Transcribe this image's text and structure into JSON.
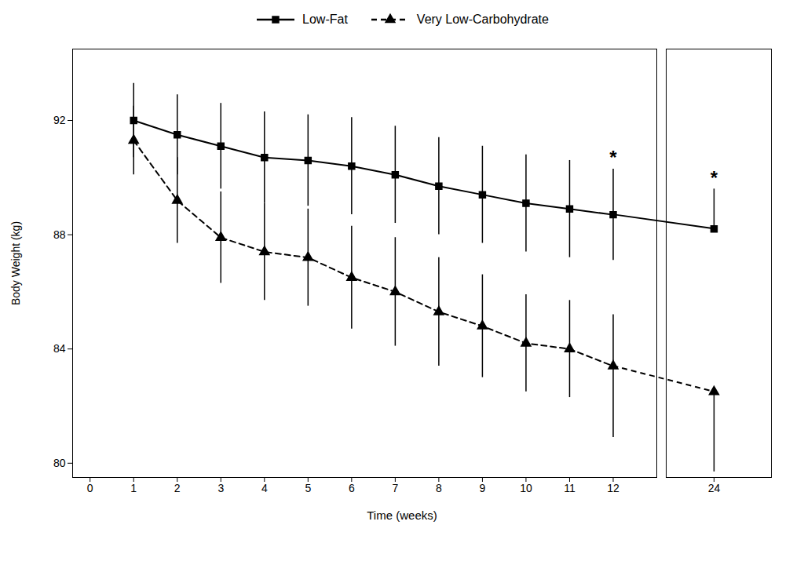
{
  "chart_data": [
    {
      "type": "line",
      "ylabel": "Body Weight (kg)",
      "xlabel": "Time (weeks)",
      "legend": "top",
      "x": [
        1,
        2,
        3,
        4,
        5,
        6,
        7,
        8,
        9,
        10,
        11,
        12
      ],
      "xlim": [
        -0.4,
        13.0
      ],
      "xticks": [
        0,
        1,
        2,
        3,
        4,
        5,
        6,
        7,
        8,
        9,
        10,
        11,
        12
      ],
      "ylim": [
        79.5,
        94.5
      ],
      "yticks": [
        80,
        84,
        88,
        92
      ],
      "series": [
        {
          "name": "Low-Fat",
          "color": "black",
          "marker": "square",
          "line_style": "solid",
          "values": [
            92.0,
            91.5,
            91.1,
            90.7,
            90.6,
            90.4,
            90.1,
            89.7,
            89.4,
            89.1,
            88.9,
            88.7
          ],
          "err_up": [
            1.3,
            1.4,
            1.5,
            1.6,
            1.6,
            1.7,
            1.7,
            1.7,
            1.7,
            1.7,
            1.7,
            1.6
          ],
          "err_dn": [
            1.3,
            1.4,
            1.5,
            1.6,
            1.6,
            1.7,
            1.7,
            1.7,
            1.7,
            1.7,
            1.7,
            1.6
          ]
        },
        {
          "name": "Very Low-Carbohydrate",
          "color": "black",
          "marker": "triangle",
          "line_style": "dashed",
          "values": [
            91.3,
            89.2,
            87.9,
            87.4,
            87.2,
            86.5,
            86.0,
            85.3,
            84.8,
            84.2,
            84.0,
            83.4
          ],
          "err_up": [
            1.2,
            1.5,
            1.6,
            1.7,
            1.7,
            1.8,
            1.9,
            1.9,
            1.8,
            1.7,
            1.7,
            1.8
          ],
          "err_dn": [
            1.2,
            1.5,
            1.6,
            1.7,
            1.7,
            1.8,
            1.9,
            1.9,
            1.8,
            1.7,
            1.7,
            2.5
          ]
        }
      ],
      "annotations": [
        {
          "text": "*",
          "x": 12,
          "series": "Low-Fat"
        }
      ]
    },
    {
      "type": "line",
      "x": [
        24
      ],
      "xlim": [
        22.5,
        25.8
      ],
      "xticks": [
        24
      ],
      "ylim": [
        79.5,
        94.5
      ],
      "tick_labels": "x",
      "series": [
        {
          "name": "Low-Fat",
          "color": "black",
          "marker": "square",
          "line_style": "solid",
          "values": [
            88.2
          ],
          "err_up": [
            1.4
          ],
          "err_dn": [
            0.0
          ]
        },
        {
          "name": "Very Low-Carbohydrate",
          "color": "black",
          "marker": "triangle",
          "line_style": "dashed",
          "values": [
            82.5
          ],
          "err_up": [
            0.0
          ],
          "err_dn": [
            2.8
          ]
        }
      ],
      "annotations": [
        {
          "text": "*",
          "x": 24,
          "series": "Low-Fat"
        }
      ]
    }
  ]
}
